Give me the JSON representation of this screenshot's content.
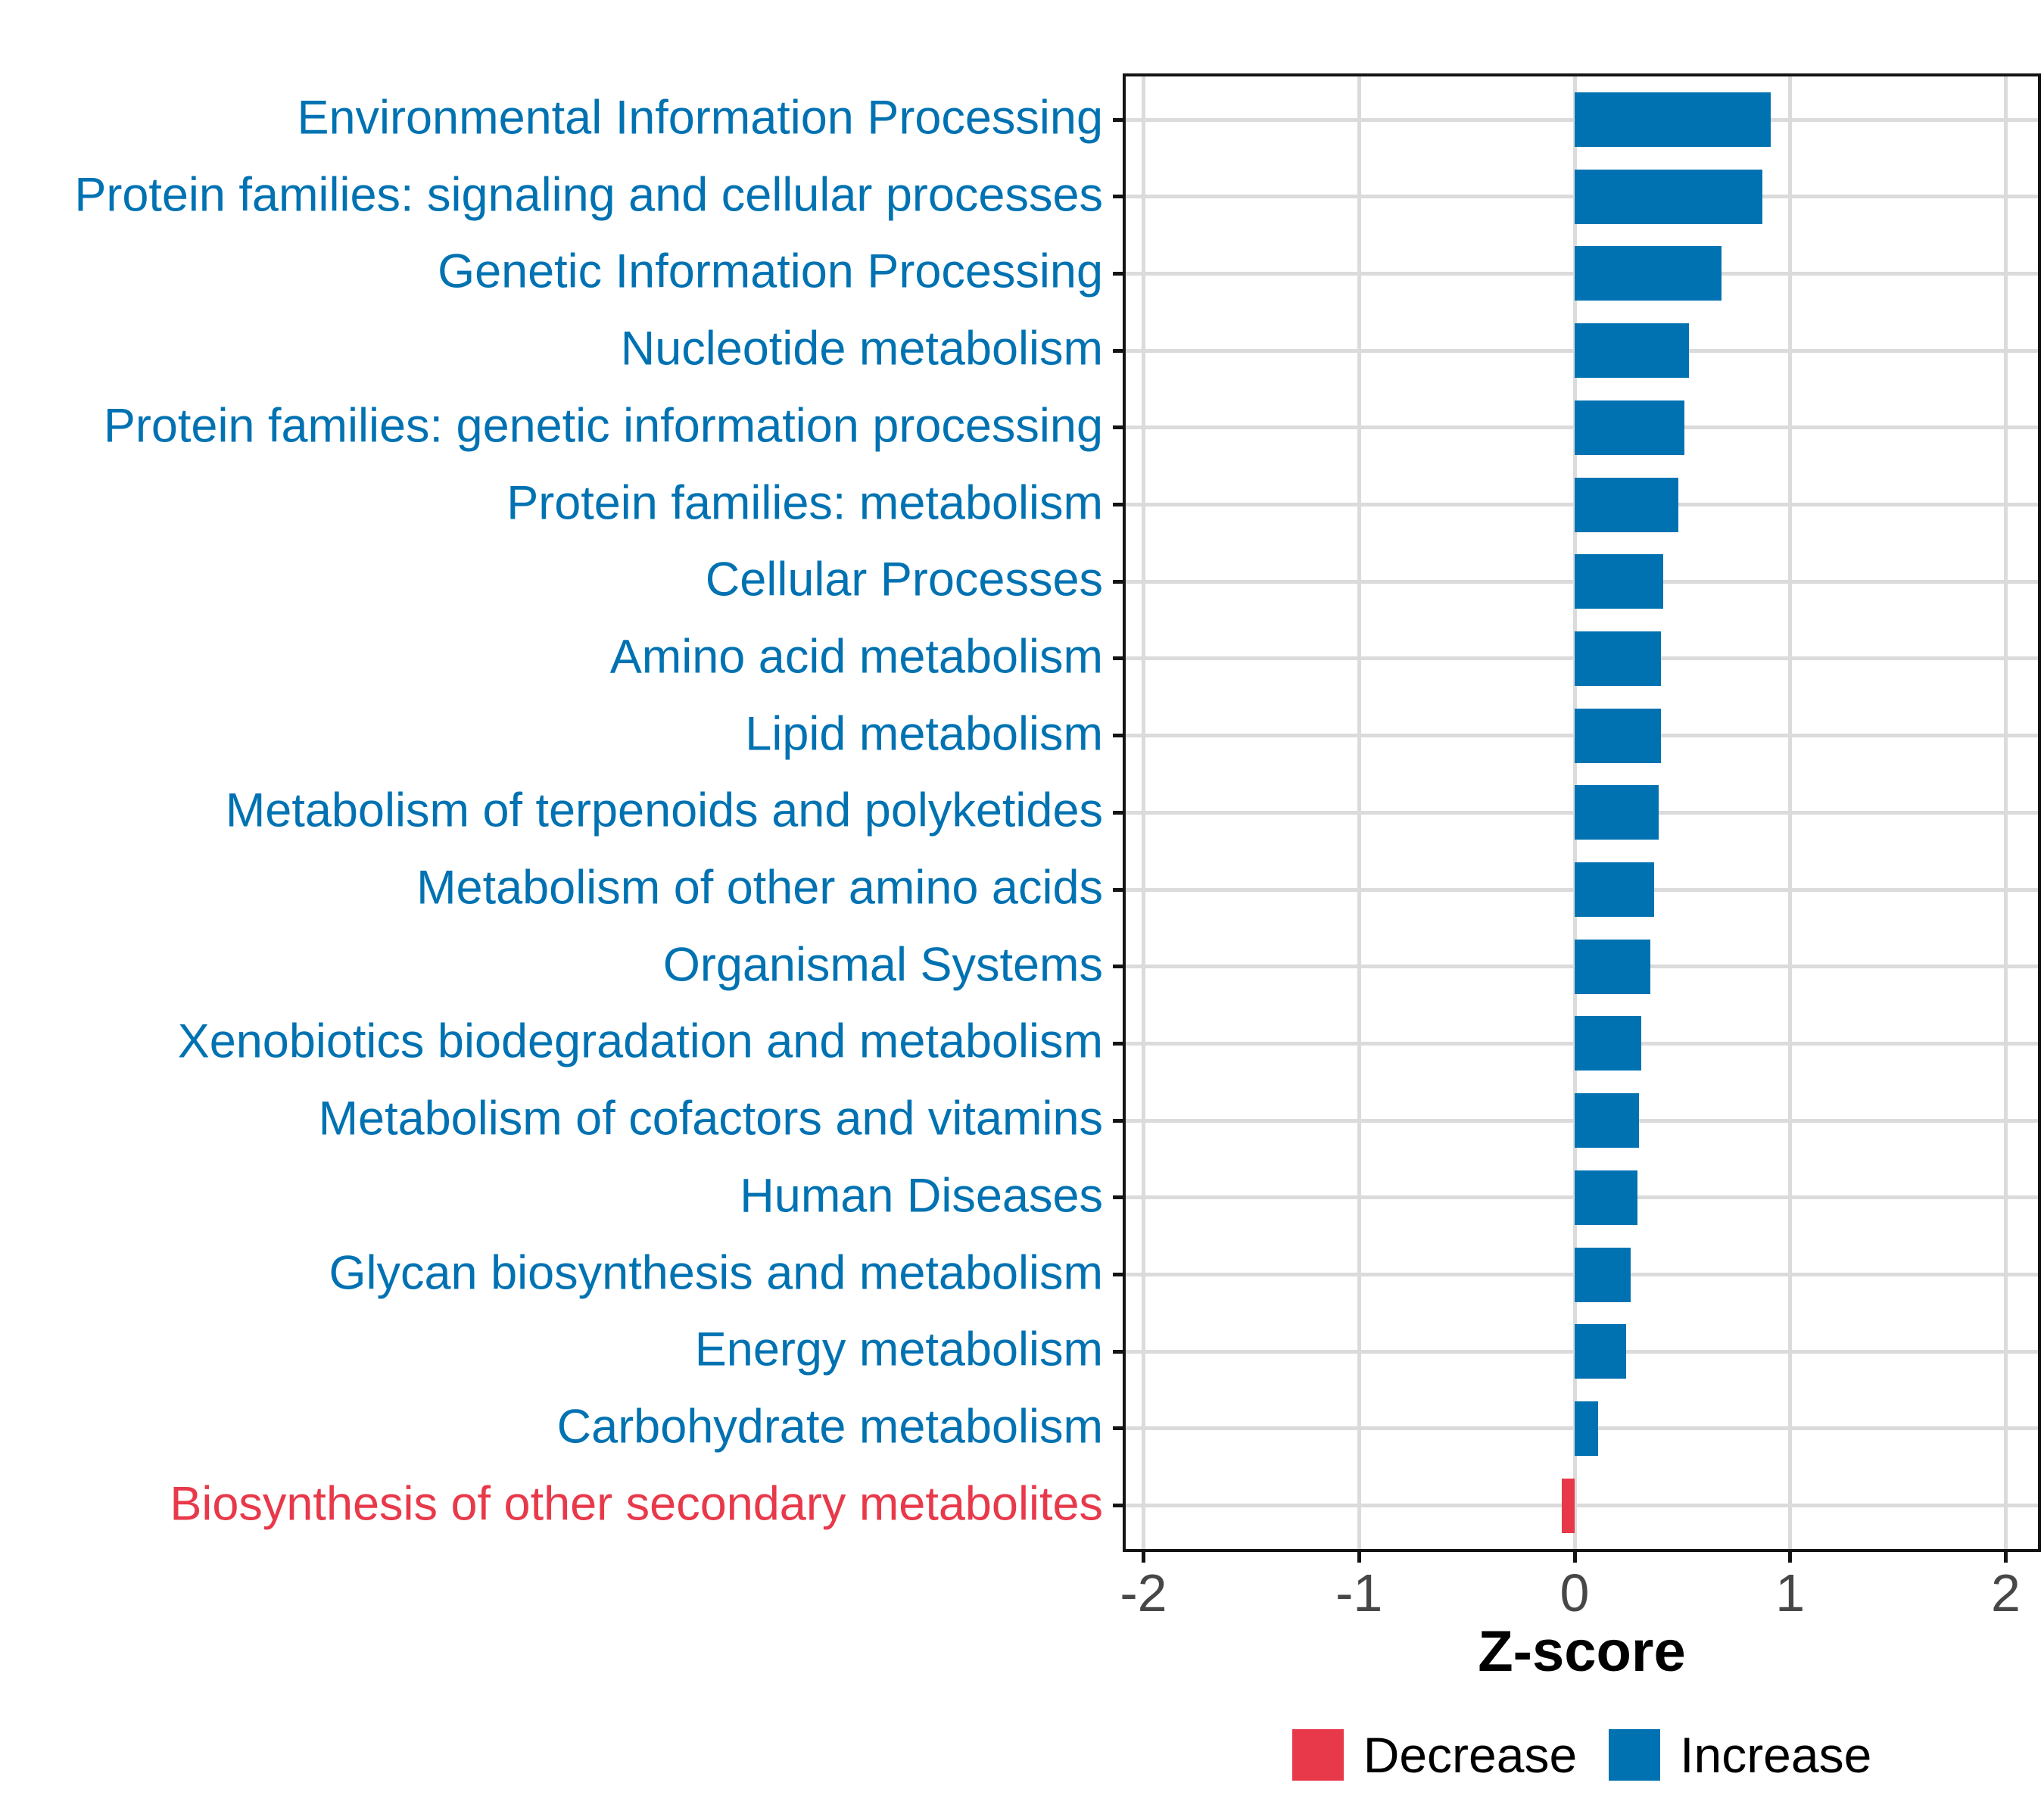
{
  "chart_data": {
    "type": "bar",
    "orientation": "horizontal",
    "title": "",
    "xlabel": "Z-score",
    "ylabel": "",
    "xlim": [
      -2.2,
      2.2
    ],
    "x_tick_values": [
      -2,
      -1,
      0,
      1,
      2
    ],
    "x_tick_labels": [
      "-2",
      "-1",
      "0",
      "1",
      "2"
    ],
    "grid": "major gridlines only, light gray on white panel, black panel border",
    "legend_position": "bottom-center",
    "categories": [
      "Environmental Information Processing",
      "Protein families: signaling and cellular processes",
      "Genetic Information Processing",
      "Nucleotide metabolism",
      "Protein families: genetic information processing",
      "Protein families: metabolism",
      "Cellular Processes",
      "Amino acid metabolism",
      "Lipid metabolism",
      "Metabolism of terpenoids and polyketides",
      "Metabolism of other amino acids",
      "Organismal Systems",
      "Xenobiotics biodegradation and metabolism",
      "Metabolism of cofactors and vitamins",
      "Human Diseases",
      "Glycan biosynthesis and metabolism",
      "Energy metabolism",
      "Carbohydrate metabolism",
      "Biosynthesis of other secondary metabolites"
    ],
    "values": [
      0.91,
      0.87,
      0.68,
      0.53,
      0.51,
      0.48,
      0.41,
      0.4,
      0.4,
      0.39,
      0.37,
      0.35,
      0.31,
      0.3,
      0.29,
      0.26,
      0.24,
      0.11,
      -0.06
    ],
    "directions": [
      "increase",
      "increase",
      "increase",
      "increase",
      "increase",
      "increase",
      "increase",
      "increase",
      "increase",
      "increase",
      "increase",
      "increase",
      "increase",
      "increase",
      "increase",
      "increase",
      "increase",
      "increase",
      "decrease"
    ]
  },
  "axis": {
    "x_title": "Z-score"
  },
  "legend": {
    "items": [
      {
        "label": "Decrease",
        "color": "#E8394A"
      },
      {
        "label": "Increase",
        "color": "#0072B2"
      }
    ]
  },
  "colors": {
    "increase": "#0072B2",
    "decrease": "#E8394A",
    "grid": "#DBDBDB",
    "axis_line": "#141414",
    "tick_text": "#474747",
    "background": "#FFFFFF"
  }
}
